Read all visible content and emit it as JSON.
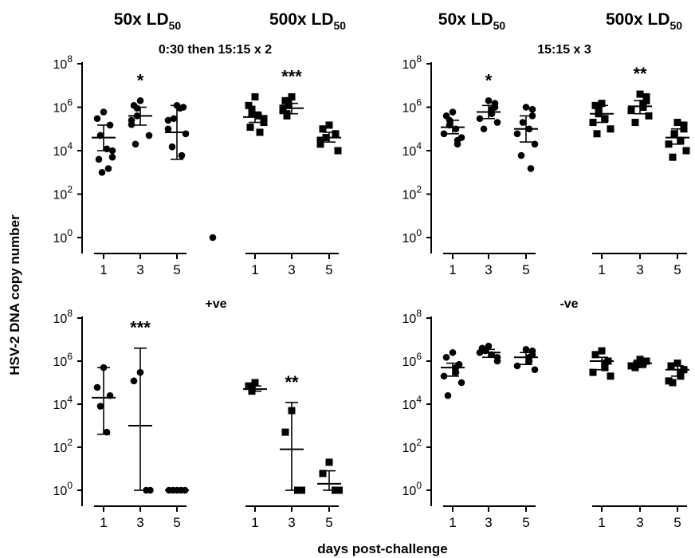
{
  "figure": {
    "ylabel": "HSV-2 DNA copy number",
    "xlabel": "days post-challenge",
    "column_headers": [
      "50x LD",
      "500x LD",
      "50x LD",
      "500x LD"
    ],
    "column_header_subscript": "50",
    "colors": {
      "ink": "#000000",
      "background": "#ffffff"
    },
    "markers": {
      "50x LD50": "circle",
      "500x LD50": "square"
    }
  },
  "chart_data": [
    {
      "type": "scatter",
      "title": "0:30 then 15:15 x 2",
      "y_scale": "log10",
      "ylim": [
        1,
        100000000
      ],
      "y_tick_exponents": [
        0,
        2,
        4,
        6,
        8
      ],
      "groups": [
        {
          "dose": "50x LD50",
          "marker": "circle",
          "day": "1",
          "points": [
            600000,
            300000,
            150000,
            50000,
            12000,
            10000,
            5000,
            4000,
            1500,
            1000
          ],
          "center": 40000,
          "err": [
            10000,
            150000
          ],
          "sig": ""
        },
        {
          "dose": "50x LD50",
          "marker": "circle",
          "day": "3",
          "points": [
            2000000,
            1200000,
            900000,
            400000,
            250000,
            160000,
            50000,
            20000
          ],
          "center": 400000,
          "err": [
            150000,
            1000000
          ],
          "sig": "*"
        },
        {
          "dose": "50x LD50",
          "marker": "circle",
          "day": "5",
          "points": [
            1200000,
            1000000,
            900000,
            300000,
            250000,
            100000,
            60000,
            15000,
            6000,
            1
          ],
          "center": 70000,
          "err": [
            4000,
            1200000
          ],
          "sig": ""
        },
        {
          "dose": "500x LD50",
          "marker": "square",
          "day": "1",
          "points": [
            3000000,
            1200000,
            800000,
            500000,
            400000,
            300000,
            200000,
            120000,
            70000
          ],
          "center": 350000,
          "err": [
            200000,
            600000
          ],
          "sig": ""
        },
        {
          "dose": "500x LD50",
          "marker": "square",
          "day": "3",
          "points": [
            3000000,
            2000000,
            1500000,
            1200000,
            900000,
            700000,
            500000,
            400000
          ],
          "center": 900000,
          "err": [
            500000,
            1500000
          ],
          "sig": "***"
        },
        {
          "dose": "500x LD50",
          "marker": "square",
          "day": "5",
          "points": [
            150000,
            100000,
            60000,
            40000,
            30000,
            20000,
            10000
          ],
          "center": 40000,
          "err": [
            25000,
            70000
          ],
          "sig": ""
        }
      ]
    },
    {
      "type": "scatter",
      "title": "15:15 x 3",
      "y_scale": "log10",
      "ylim": [
        1,
        100000000
      ],
      "y_tick_exponents": [
        0,
        2,
        4,
        6,
        8
      ],
      "groups": [
        {
          "dose": "50x LD50",
          "marker": "circle",
          "day": "1",
          "points": [
            600000,
            400000,
            250000,
            150000,
            100000,
            60000,
            40000,
            30000,
            20000
          ],
          "center": 120000,
          "err": [
            60000,
            250000
          ],
          "sig": ""
        },
        {
          "dose": "50x LD50",
          "marker": "circle",
          "day": "3",
          "points": [
            2000000,
            1500000,
            1000000,
            800000,
            500000,
            300000,
            200000,
            100000
          ],
          "center": 600000,
          "err": [
            300000,
            1200000
          ],
          "sig": "*"
        },
        {
          "dose": "50x LD50",
          "marker": "circle",
          "day": "5",
          "points": [
            1000000,
            800000,
            400000,
            200000,
            100000,
            60000,
            20000,
            6000,
            1500
          ],
          "center": 100000,
          "err": [
            25000,
            400000
          ],
          "sig": ""
        },
        {
          "dose": "500x LD50",
          "marker": "square",
          "day": "1",
          "points": [
            1500000,
            1200000,
            800000,
            500000,
            300000,
            200000,
            100000,
            60000
          ],
          "center": 500000,
          "err": [
            200000,
            1200000
          ],
          "sig": ""
        },
        {
          "dose": "500x LD50",
          "marker": "square",
          "day": "3",
          "points": [
            4000000,
            3000000,
            2000000,
            1500000,
            1000000,
            700000,
            400000,
            200000
          ],
          "center": 1100000,
          "err": [
            500000,
            2000000
          ],
          "sig": "**"
        },
        {
          "dose": "500x LD50",
          "marker": "square",
          "day": "5",
          "points": [
            200000,
            150000,
            100000,
            60000,
            30000,
            20000,
            10000,
            5000
          ],
          "center": 40000,
          "err": [
            20000,
            100000
          ],
          "sig": ""
        }
      ]
    },
    {
      "type": "scatter",
      "title": "+ve",
      "y_scale": "log10",
      "ylim": [
        1,
        100000000
      ],
      "y_tick_exponents": [
        0,
        2,
        4,
        6,
        8
      ],
      "groups": [
        {
          "dose": "50x LD50",
          "marker": "circle",
          "day": "1",
          "points": [
            500000,
            60000,
            25000,
            8000,
            500
          ],
          "center": 20000,
          "err": [
            400,
            500000
          ],
          "sig": ""
        },
        {
          "dose": "50x LD50",
          "marker": "circle",
          "day": "3",
          "points": [
            300000,
            120000,
            1,
            1
          ],
          "center": 1000,
          "err": [
            1,
            4000000
          ],
          "sig": "***"
        },
        {
          "dose": "50x LD50",
          "marker": "circle",
          "day": "5",
          "points": [
            1,
            1,
            1,
            1,
            1
          ],
          "center": 1,
          "err": [
            1,
            1
          ],
          "sig": ""
        },
        {
          "dose": "500x LD50",
          "marker": "square",
          "day": "1",
          "points": [
            100000,
            70000,
            50000,
            40000
          ],
          "center": 50000,
          "err": [
            40000,
            70000
          ],
          "sig": ""
        },
        {
          "dose": "500x LD50",
          "marker": "square",
          "day": "3",
          "points": [
            5000,
            500,
            1,
            1
          ],
          "center": 80,
          "err": [
            1,
            12000
          ],
          "sig": "**"
        },
        {
          "dose": "500x LD50",
          "marker": "square",
          "day": "5",
          "points": [
            20,
            6,
            1,
            1
          ],
          "center": 2,
          "err": [
            1,
            8
          ],
          "sig": ""
        }
      ]
    },
    {
      "type": "scatter",
      "title": "-ve",
      "y_scale": "log10",
      "ylim": [
        1,
        100000000
      ],
      "y_tick_exponents": [
        0,
        2,
        4,
        6,
        8
      ],
      "groups": [
        {
          "dose": "50x LD50",
          "marker": "circle",
          "day": "1",
          "points": [
            2500000,
            1500000,
            700000,
            500000,
            300000,
            200000,
            100000,
            25000
          ],
          "center": 500000,
          "err": [
            200000,
            800000
          ],
          "sig": ""
        },
        {
          "dose": "50x LD50",
          "marker": "circle",
          "day": "3",
          "points": [
            5000000,
            4000000,
            3000000,
            2500000,
            2000000,
            1500000,
            1000000
          ],
          "center": 2500000,
          "err": [
            1500000,
            3500000
          ],
          "sig": ""
        },
        {
          "dose": "50x LD50",
          "marker": "circle",
          "day": "5",
          "points": [
            3500000,
            3000000,
            2000000,
            1500000,
            1000000,
            600000,
            400000
          ],
          "center": 1500000,
          "err": [
            700000,
            2500000
          ],
          "sig": ""
        },
        {
          "dose": "500x LD50",
          "marker": "square",
          "day": "1",
          "points": [
            3000000,
            2000000,
            1000000,
            800000,
            500000,
            300000,
            200000
          ],
          "center": 1000000,
          "err": [
            400000,
            1500000
          ],
          "sig": ""
        },
        {
          "dose": "500x LD50",
          "marker": "square",
          "day": "3",
          "points": [
            1200000,
            1000000,
            800000,
            700000,
            600000,
            500000
          ],
          "center": 800000,
          "err": [
            500000,
            1100000
          ],
          "sig": ""
        },
        {
          "dose": "500x LD50",
          "marker": "square",
          "day": "5",
          "points": [
            800000,
            600000,
            400000,
            300000,
            200000,
            120000,
            100000
          ],
          "center": 400000,
          "err": [
            200000,
            600000
          ],
          "sig": ""
        }
      ]
    }
  ]
}
